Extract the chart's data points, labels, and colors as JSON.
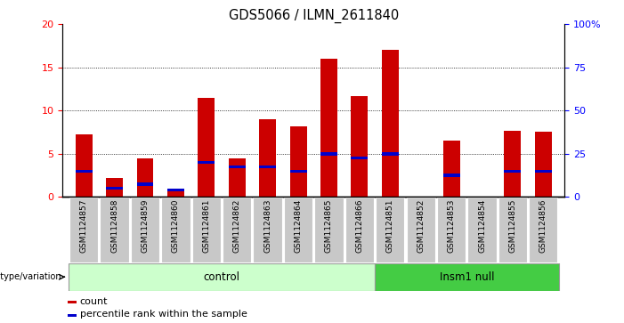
{
  "title": "GDS5066 / ILMN_2611840",
  "samples": [
    "GSM1124857",
    "GSM1124858",
    "GSM1124859",
    "GSM1124860",
    "GSM1124861",
    "GSM1124862",
    "GSM1124863",
    "GSM1124864",
    "GSM1124865",
    "GSM1124866",
    "GSM1124851",
    "GSM1124852",
    "GSM1124853",
    "GSM1124854",
    "GSM1124855",
    "GSM1124856"
  ],
  "counts": [
    7.3,
    2.2,
    4.5,
    1.0,
    11.5,
    4.5,
    9.0,
    8.2,
    16.0,
    11.7,
    17.0,
    0.0,
    6.5,
    0.0,
    7.7,
    7.6
  ],
  "percentiles": [
    3.0,
    1.0,
    1.5,
    0.8,
    4.0,
    3.5,
    3.5,
    3.0,
    5.0,
    4.5,
    5.0,
    0.0,
    2.5,
    0.0,
    3.0,
    3.0
  ],
  "n_control": 10,
  "n_insm1": 6,
  "control_label": "control",
  "insm1_label": "Insm1 null",
  "genotype_label": "genotype/variation",
  "ylim_left": [
    0,
    20
  ],
  "ylim_right": [
    0,
    100
  ],
  "yticks_left": [
    0,
    5,
    10,
    15,
    20
  ],
  "yticks_right": [
    0,
    25,
    50,
    75,
    100
  ],
  "bar_color": "#cc0000",
  "blue_color": "#0000cc",
  "control_bg": "#ccffcc",
  "insm1_bg": "#44cc44",
  "tick_bg": "#c8c8c8",
  "bar_width": 0.55,
  "legend_count": "count",
  "legend_percentile": "percentile rank within the sample",
  "background_color": "#ffffff",
  "title_fontsize": 10.5,
  "tick_fontsize": 6.5,
  "axis_fontsize": 8,
  "blue_bar_height": 0.35
}
